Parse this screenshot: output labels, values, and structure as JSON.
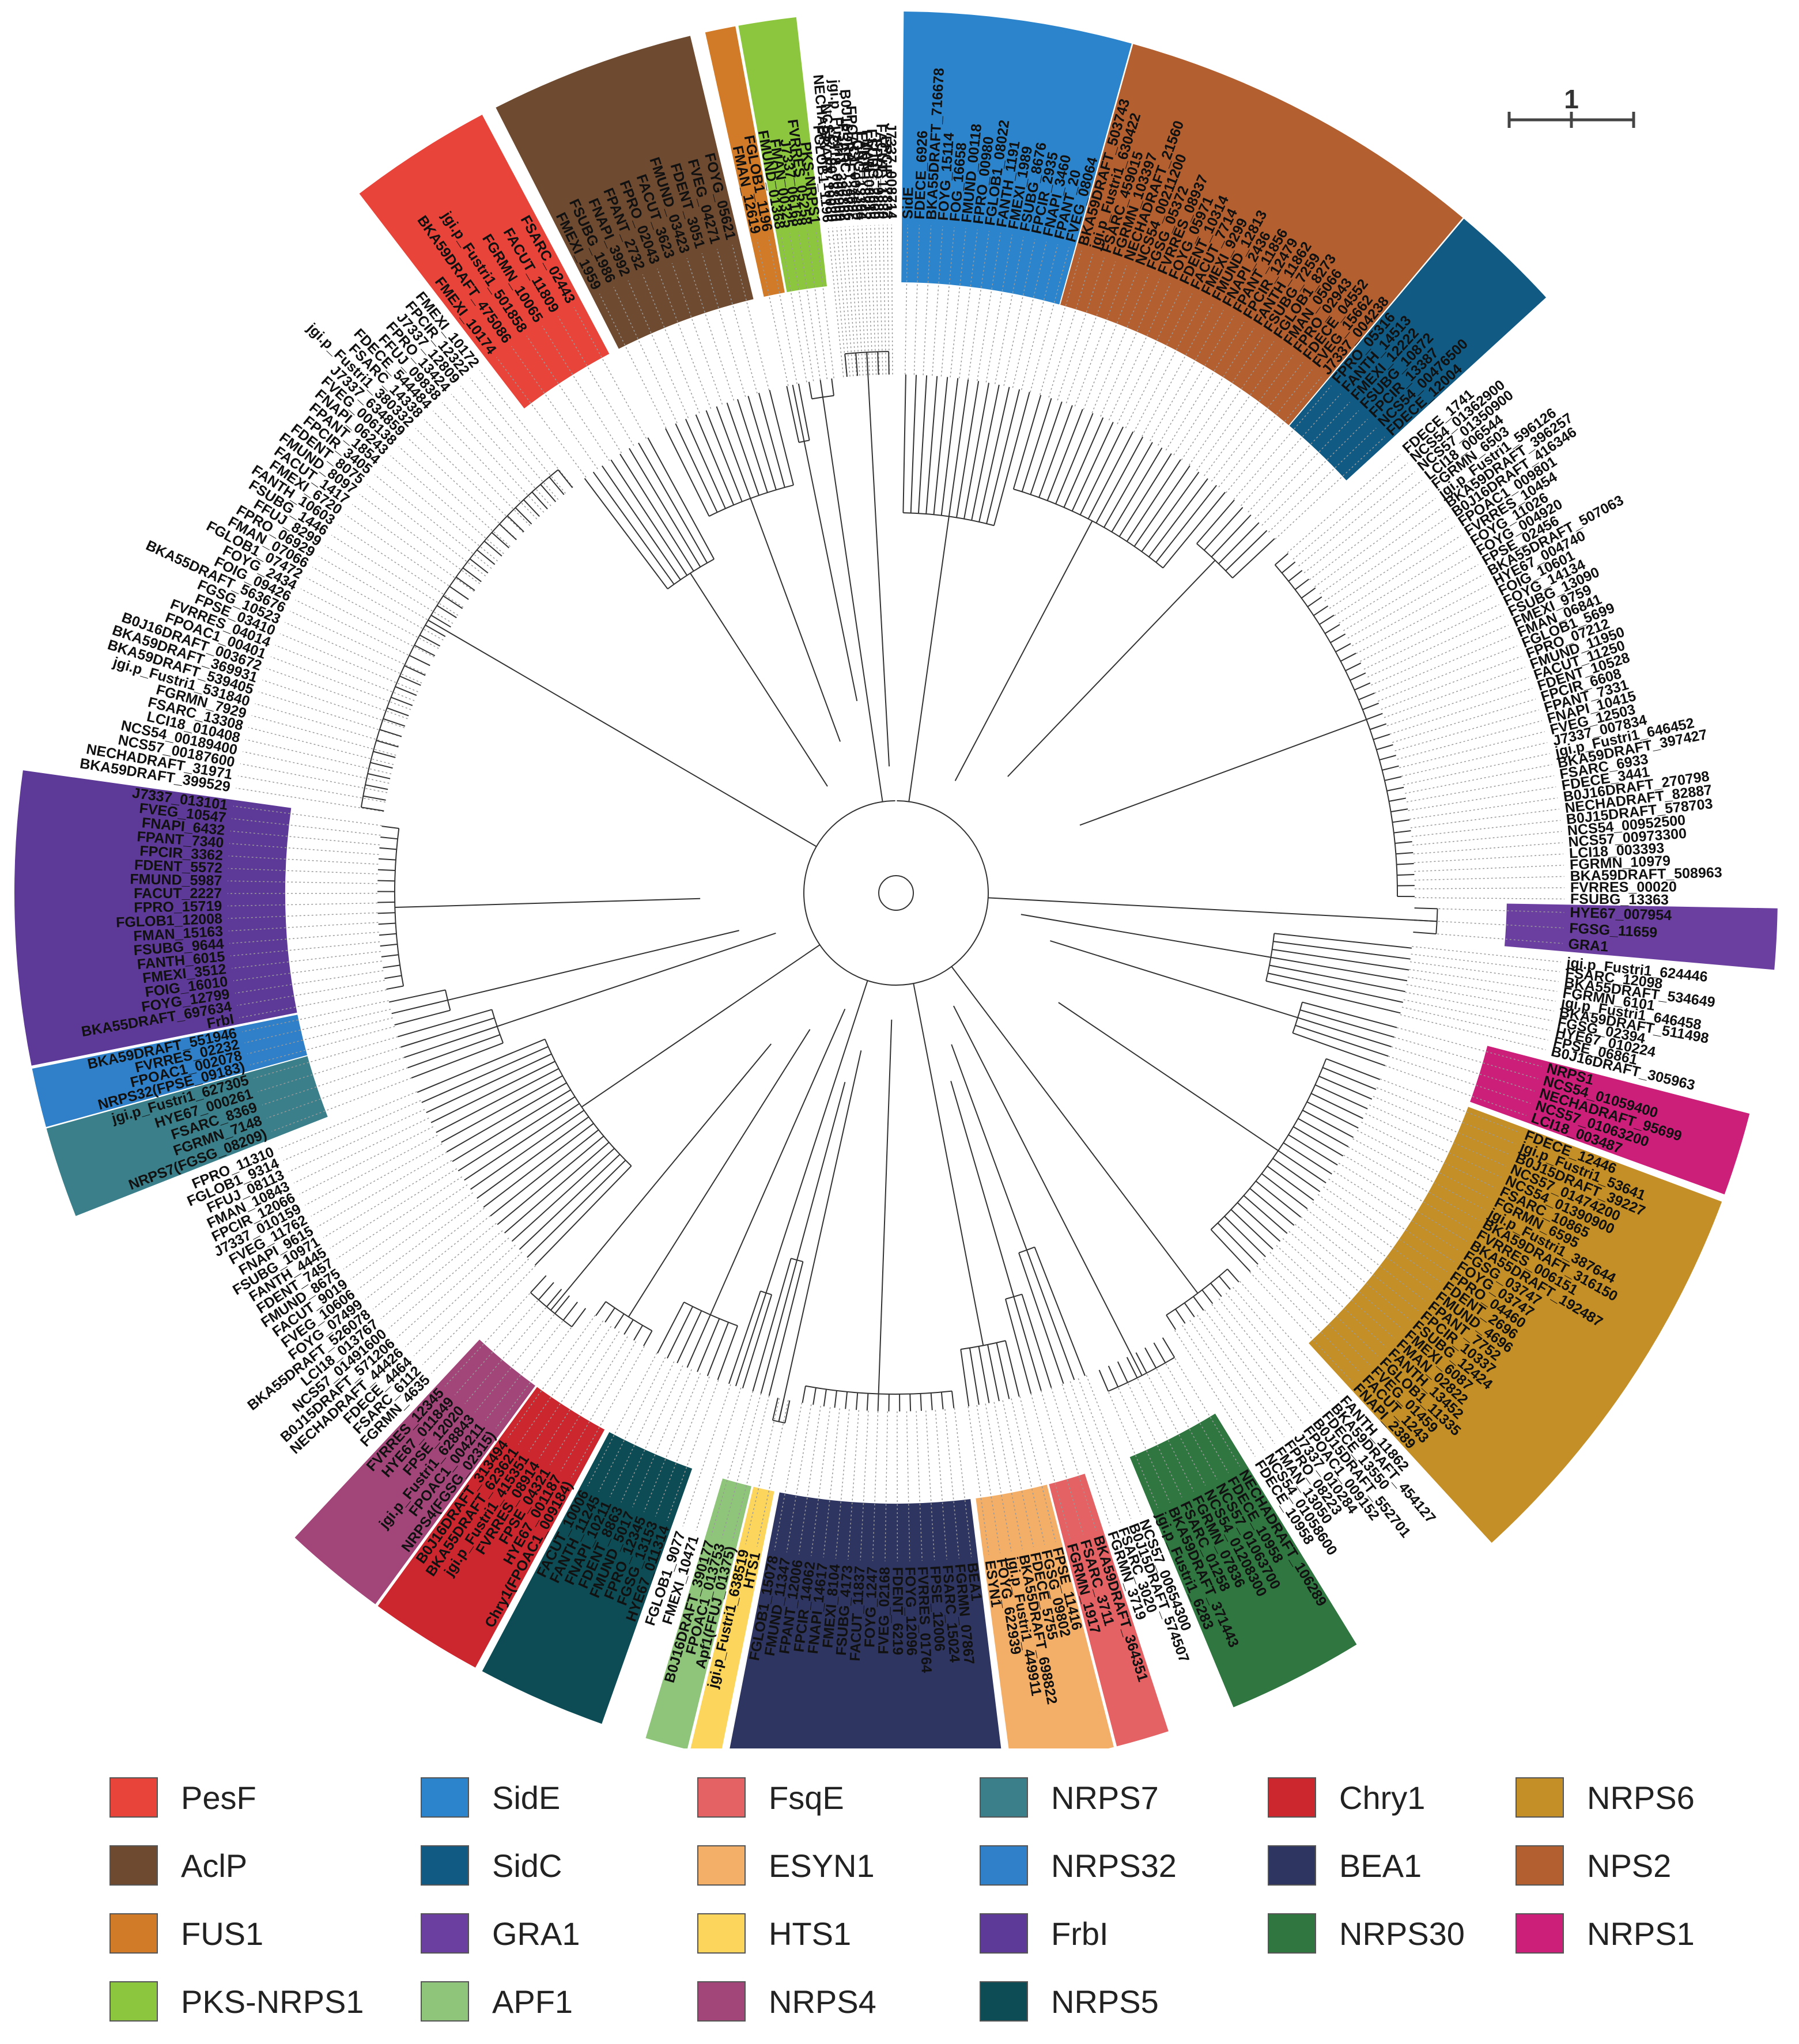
{
  "scale_bar": {
    "label": "1"
  },
  "clades": [
    {
      "name": "PesF",
      "color": "#e8443a",
      "start": 322.5,
      "end": 332.0,
      "labels": [
        "FMEXI_10174",
        "BKA59DRAFT_475086",
        "jgi.p_Fustri1_501858",
        "FGRMN_10065",
        "FACUT_11809",
        "FSARC_02443"
      ]
    },
    {
      "name": "AclP",
      "color": "#6e4a30",
      "start": 333.0,
      "end": 346.5,
      "labels": [
        "FMEXI_1959",
        "FSUBG_1986",
        "FNAPI_3992",
        "FPANT_2732",
        "FPRO_02043",
        "FACUT_3623",
        "FMUND_03423",
        "FDENT_3051",
        "FVEG_04271",
        "FOYG_05621"
      ]
    },
    {
      "name": "FUS1",
      "color": "#d17a27",
      "start": 347.5,
      "end": 349.5,
      "labels": [
        "FMAN_12619",
        "FGLOB1_1196"
      ]
    },
    {
      "name": "PKS-NRPS1",
      "color": "#8cc63f",
      "start": 349.7,
      "end": 353.5,
      "labels": [
        "FMUND_01368",
        "FMAN_00325",
        "J7337_06168",
        "FVRRES_05258",
        "PKS-NRPS1"
      ]
    },
    {
      "name": "SidE",
      "color": "#2c85cc",
      "start": 0.5,
      "end": 15.5,
      "labels": [
        "SidE",
        "FDECE_6926",
        "BKA55DRAFT_716678",
        "FOYG_15114",
        "FOG_16658",
        "FMUND_00118",
        "FPRO_00980",
        "FGLOB1_08022",
        "FANTH_1191",
        "FMEXI_1989",
        "FSUBG_8676",
        "FPCIR_2935",
        "FNAPI_3460",
        "FPANT_20",
        "FVEG_08064"
      ]
    },
    {
      "name": "NPS2",
      "color": "#b35f2f",
      "start": 15.6,
      "end": 40.0,
      "labels": [
        "BKA59DRAFT_503743",
        "jgi.p_Fustri1_630422",
        "FSARC_459015",
        "FGRMN_103397",
        "NECHADRAFT_21560",
        "NCS54_00211200",
        "FGSG_05372",
        "FVRRES_08937",
        "FOYG_05971",
        "FDENT_10314",
        "FACUT_7714",
        "FMEXI_9299",
        "FMUND_12813",
        "FNAPI_2436",
        "FPANT_11856",
        "FPCIR_12479",
        "FANTH_11862",
        "FSUBG_7259",
        "FGLOB1_8273",
        "FMAN_05066",
        "FPRO_02943",
        "FDECE_04552",
        "FVEG_15662",
        "J7337_004238"
      ]
    },
    {
      "name": "SidC",
      "color": "#115a83",
      "start": 40.1,
      "end": 47.5,
      "labels": [
        "FPRO_05316",
        "FANTH_14513",
        "FMEXI_12222",
        "FSUBG_10872",
        "FPCIR_13387",
        "NCS54_00476500",
        "FDECE_12004"
      ]
    },
    {
      "name": "GRA1",
      "color": "#6b3fa0",
      "start": 91.0,
      "end": 95.0,
      "labels": [
        "HYE67_007954",
        "FGSG_11659",
        "GRA1"
      ]
    },
    {
      "name": "NRPS1",
      "color": "#cc1f7a",
      "start": 104.5,
      "end": 110.0,
      "labels": [
        "NRPS1",
        "NCS54_01059400",
        "NECHADRAFT_95699",
        "NCS57_01063200",
        "LCI18_003487"
      ]
    },
    {
      "name": "NRPS6",
      "color": "#c48f26",
      "start": 110.5,
      "end": 137.5,
      "labels": [
        "FDECE_12446",
        "jgi.p_Fustri1_53641",
        "B0J15DRAFT_39227",
        "NCS57_01474200",
        "NCS54_01390900",
        "FSARC_10865",
        "FGRMN_6595",
        "jgi.p_Fustri1_387644",
        "BKA59DRAFT_316150",
        "FVRRES_006151",
        "BKA55DRAFT_192487",
        "FGSG_03747",
        "FOYG_03747",
        "FPRO_04460",
        "FDENT_2696",
        "FMUND_4696",
        "FPANT_7752",
        "FPCIR_10337",
        "FSUBG_12424",
        "FMEXI_6087",
        "FMAN_02822",
        "FANTH_13452",
        "FGLOB1_11335",
        "FVEG_01459",
        "FACUT_1243",
        "FNAPI_2389"
      ]
    },
    {
      "name": "NRPS30",
      "color": "#2f7640",
      "start": 148.5,
      "end": 157.5,
      "labels": [
        "NECHADRAFT_106289",
        "FDECE_10958",
        "NCS57_01063700",
        "NCS54_01208300",
        "FGRMN_07836",
        "FSARC_01258",
        "BKA59DRAFT_371443",
        "jgi.p_Fustri1_6283"
      ]
    },
    {
      "name": "FsqE",
      "color": "#e46264",
      "start": 162.0,
      "end": 165.5,
      "labels": [
        "BKA59DRAFT_364351",
        "FSARC_3711",
        "FGRMN_1917"
      ]
    },
    {
      "name": "ESYN1",
      "color": "#f3ae67",
      "start": 165.7,
      "end": 172.5,
      "labels": [
        "FPSE_11416",
        "FGSG_09802",
        "FDECE_5755",
        "BKA55DRAFT_698822",
        "jgi.p_Fustri1_449911",
        "FOYG_622939",
        "ESYN1"
      ]
    },
    {
      "name": "BEA1",
      "color": "#2e3560",
      "start": 173.0,
      "end": 191.0,
      "labels": [
        "BEA1",
        "FGRMN_07867",
        "FSARC_15024",
        "FPSE_12006",
        "FVRRES_01764",
        "FOYG_12096",
        "FDENT_6219",
        "FVEG_02168",
        "FOYG_1247",
        "FACUT_11837",
        "FSUBG_4173",
        "FMEXI_8104",
        "FNAPI_14617",
        "FPCIR_14062",
        "FPANT_12006",
        "FMUND_11347",
        "FGLOB1_15078"
      ]
    },
    {
      "name": "HTS1",
      "color": "#fbd55c",
      "start": 191.5,
      "end": 193.5,
      "labels": [
        "HTS1",
        "jgi.p_Fustri1_638519"
      ]
    },
    {
      "name": "APF1",
      "color": "#8fc57a",
      "start": 193.7,
      "end": 196.5,
      "labels": [
        "Apf1(FFUJ_01375)",
        "FPOAC1_013753",
        "B0J16DRAFT_390177"
      ]
    },
    {
      "name": "NRPS5",
      "color": "#0d4c54",
      "start": 199.5,
      "end": 208.0,
      "labels": [
        "HYE67_011314",
        "FGSG_13153",
        "FPRO_12345",
        "FMUND_5017",
        "FDENT_8863",
        "FNAPI_10211",
        "FANTH_11245",
        "FACUT_10006"
      ]
    },
    {
      "name": "Chry1",
      "color": "#cc262f",
      "start": 208.5,
      "end": 216.0,
      "labels": [
        "Chry1(FPOAC1_009184)",
        "HYE67_001187",
        "FPSE_04321",
        "FVRRES_08914",
        "jgi.p_Fustri1_415351",
        "BKA55DRAFT_623621",
        "B0J16DRAFT_313494"
      ]
    },
    {
      "name": "NRPS4",
      "color": "#a2467a",
      "start": 216.2,
      "end": 223.0,
      "labels": [
        "NRPS4(FGSG_02315)",
        "FPOAC1_004211",
        "jgi.p_Fustri1_628843",
        "FPSE_12020",
        "HYE67_011849",
        "FVRRES_12345"
      ]
    },
    {
      "name": "NRPS7",
      "color": "#3b7f8a",
      "start": 248.5,
      "end": 254.5,
      "labels": [
        "NRPS7(FGSG_08209)",
        "FGRMN_7148",
        "FSARC_8369",
        "HYE67_000261",
        "jgi.p_Fustri1_627305"
      ]
    },
    {
      "name": "NRPS32",
      "color": "#2f80c8",
      "start": 254.6,
      "end": 258.5,
      "labels": [
        "NRPS32(FPSE_09183)",
        "FPOAC1_002078",
        "FVRRES_02232",
        "BKA59DRAFT_551946"
      ]
    },
    {
      "name": "FrbI",
      "color": "#5e3a98",
      "start": 258.7,
      "end": 278.0,
      "labels": [
        "FrbI",
        "BKA55DRAFT_697634",
        "FOYG_12799",
        "FOIG_16010",
        "FMEXI_3512",
        "FANTH_6015",
        "FSUBG_9644",
        "FMAN_15163",
        "FGLOB1_12008",
        "FPRO_15719",
        "FACUT_2227",
        "FMUND_5987",
        "FDENT_5572",
        "FPCIR_3362",
        "FPANT_7340",
        "FNAPI_6432",
        "FVEG_10547",
        "J7337_013101"
      ]
    }
  ],
  "uncolored_labels": [
    {
      "start": 48.5,
      "end": 91.0,
      "labels": [
        "FDECE_1741",
        "NCS54_01362900",
        "NCS57_01350900",
        "LCI18_006544",
        "FGRMN_6503",
        "jgi.p_Fustri1_596126",
        "BKA59DRAFT_396257",
        "B0J16DRAFT_416346",
        "FPOAC1_009801",
        "FVRRES_10454",
        "FOYG_11026",
        "FOYG_004920",
        "FPSE_02456",
        "BKA55DRAFT_507063",
        "HYE67_004740",
        "FOIG_10601",
        "FOYG_14134",
        "FSUBG_13090",
        "FMEXI_9759",
        "FMAN_06841",
        "FGLOB1_5699",
        "FPRO_07212",
        "FMUND_11950",
        "FACUT_11250",
        "FDENT_10528",
        "FPCIR_6608",
        "FPANT_7331",
        "FNAPI_10415",
        "FVEG_12503",
        "J7337_007834",
        "jgi.p_Fustri1_646452",
        "BKA59DRAFT_397427",
        "FSARC_6933",
        "FDECE_3441",
        "B0J16DRAFT_270798",
        "NECHADRAFT_82887",
        "B0J15DRAFT_578703",
        "NCS54_00952500",
        "NCS57_00973300",
        "LCI18_003393",
        "FGRMN_10979",
        "BKA59DRAFT_508963",
        "FVRRES_00020",
        "FSUBG_13363"
      ]
    },
    {
      "start": 95.5,
      "end": 104.0,
      "labels": [
        "jgi.p_Fustri1_624446",
        "FSARC_12098",
        "BKA55DRAFT_534649",
        "FGRMN_6101",
        "jgi.p_Fustri1_646458",
        "BKA59DRAFT_511498",
        "FGSG_02394",
        "HYE67_010224",
        "FPSE_06861",
        "B0J16DRAFT_305963"
      ]
    },
    {
      "start": 138.0,
      "end": 148.0,
      "labels": [
        "FANTH_11862",
        "BKA59DRAFT_454127",
        "FDECE_13550",
        "B0J15DRAFT_552701",
        "FPOAC1_009152",
        "J7337_010284",
        "FPRO_08223",
        "FMAN_13050",
        "NCS54_01058600",
        "FDECE_10958"
      ]
    },
    {
      "start": 158.0,
      "end": 161.8,
      "labels": [
        "NCS57_00654300",
        "B0J15DRAFT_574507",
        "FSARC_3020",
        "FGRMN_3719"
      ]
    },
    {
      "start": 196.8,
      "end": 199.2,
      "labels": [
        "FMEXI_10471",
        "FGLOB1_9077"
      ]
    },
    {
      "start": 223.5,
      "end": 248.0,
      "labels": [
        "FGRMN_4635",
        "FSARC_6112",
        "FDECE_4464",
        "NECHADRAFT_44426",
        "B0J15DRAFT_571206",
        "NCS57_01491600",
        "LCI18_013767",
        "BKA55DRAFT_526078",
        "FOYG_07499",
        "FVEG_10606",
        "FACUT_9019",
        "FMUND_8675",
        "FDENT_7457",
        "FANTH_4445",
        "FSUBG_10971",
        "FNAPI_9615",
        "FVEG_11762",
        "J7337_010159",
        "FPCIR_12066",
        "FMAN_10843",
        "FFUJ_08113",
        "FGLOB1_9314",
        "FPRO_11310"
      ]
    },
    {
      "start": 278.5,
      "end": 322.0,
      "labels": [
        "BKA59DRAFT_399529",
        "NECHADRAFT_31971",
        "NCS57_00187600",
        "NCS54_00189400",
        "LCI18_010408",
        "FSARC_13308",
        "FGRMN_7929",
        "jgi.p_Fustri1_531840",
        "BKA59DRAFT_539405",
        "BKA59DRAFT_369931",
        "B0J16DRAFT_003672",
        "FPOAC1_00401",
        "FVRRES_04014",
        "FPSE_03410",
        "FGSG_10523",
        "BKA55DRAFT_563676",
        "FOIG_09426",
        "FOYG_2434",
        "FGLOB1_07472",
        "FMAN_07066",
        "FPRO_06929",
        "FFUJ_8299",
        "FSUBG_1446",
        "FANTH_10603",
        "FMEXI_6720",
        "FACUT_1417",
        "FMUND_8097",
        "FDENT_8075",
        "FPCIR_3405",
        "FPANT_1854",
        "FNAPI_06243",
        "FVEG_006138",
        "J7337_634859",
        "jgi.p_Fustri1_380332",
        "FSARC_14338",
        "FDECE_544484",
        "FFUJ_09838",
        "FPRO_13424",
        "J7337_12809",
        "FPCIR_12322",
        "FMEXI_10172"
      ]
    },
    {
      "start": 354.0,
      "end": 359.8,
      "labels": [
        "FGLOB1_1196",
        "NECHADRAFT_10030",
        "NCS57_00788500",
        "LCI18_007909",
        "jgi.p_Fustri1_396862",
        "FSARC_39766",
        "B0J16DRAFT_4892",
        "FPOAC1_004499",
        "FGSG_13394",
        "FANTH_8722",
        "FMAN_08815",
        "FSUBG_2860",
        "FPRO_9286",
        "FACUT_11830",
        "FPCIR_7832",
        "J7337_008714"
      ]
    }
  ],
  "legend": [
    {
      "label": "PesF",
      "color": "#e8443a"
    },
    {
      "label": "SidE",
      "color": "#2c85cc"
    },
    {
      "label": "FsqE",
      "color": "#e46264"
    },
    {
      "label": "NRPS7",
      "color": "#3b7f8a"
    },
    {
      "label": "Chry1",
      "color": "#cc262f"
    },
    {
      "label": "NRPS6",
      "color": "#c48f26"
    },
    {
      "label": "AclP",
      "color": "#6e4a30"
    },
    {
      "label": "SidC",
      "color": "#115a83"
    },
    {
      "label": "ESYN1",
      "color": "#f3ae67"
    },
    {
      "label": "NRPS32",
      "color": "#2f80c8"
    },
    {
      "label": "BEA1",
      "color": "#2e3560"
    },
    {
      "label": "NPS2",
      "color": "#b35f2f"
    },
    {
      "label": "FUS1",
      "color": "#d17a27"
    },
    {
      "label": "GRA1",
      "color": "#6b3fa0"
    },
    {
      "label": "HTS1",
      "color": "#fbd55c"
    },
    {
      "label": "FrbI",
      "color": "#5e3a98"
    },
    {
      "label": "NRPS30",
      "color": "#2f7640"
    },
    {
      "label": "NRPS1",
      "color": "#cc1f7a"
    },
    {
      "label": "PKS-NRPS1",
      "color": "#8cc63f"
    },
    {
      "label": "APF1",
      "color": "#8fc57a"
    },
    {
      "label": "NRPS4",
      "color": "#a2467a"
    },
    {
      "label": "NRPS5",
      "color": "#0d4c54"
    }
  ]
}
